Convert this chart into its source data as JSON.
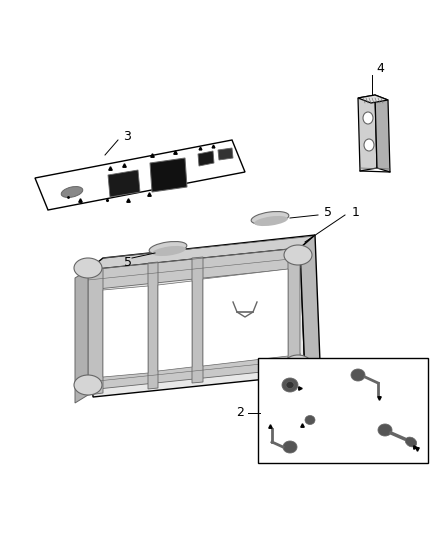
{
  "background_color": "#ffffff",
  "fig_width": 4.38,
  "fig_height": 5.33,
  "dpi": 100,
  "line_color": "#000000",
  "part_color_light": "#cccccc",
  "part_color_mid": "#999999",
  "part_color_dark": "#555555",
  "label_fontsize": 9
}
